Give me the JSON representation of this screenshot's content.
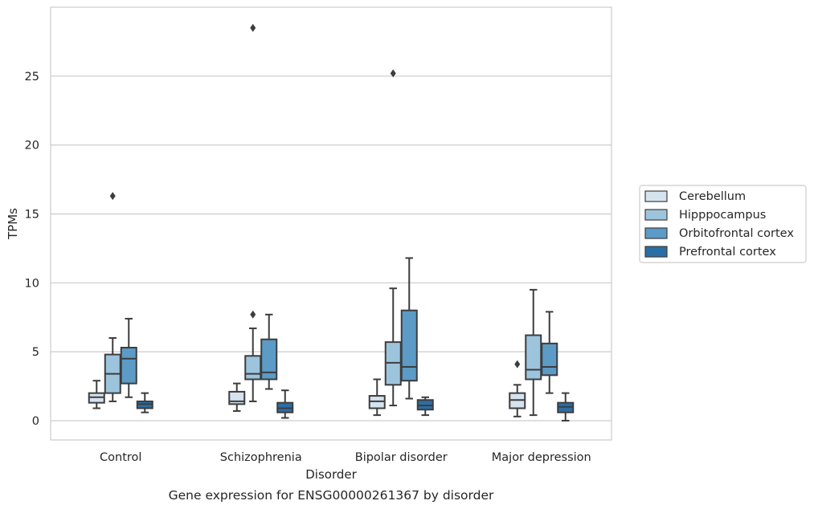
{
  "caption": "Gene expression for ENSG00000261367 by disorder",
  "chart_data": {
    "type": "box",
    "title": "",
    "xlabel": "Disorder",
    "ylabel": "TPMs",
    "ylim": [
      -1.4,
      30
    ],
    "yticks": [
      0,
      5,
      10,
      15,
      20,
      25
    ],
    "grid": "horizontal",
    "legend_position": "right",
    "categories": [
      "Control",
      "Schizophrenia",
      "Bipolar disorder",
      "Major depression"
    ],
    "series": [
      {
        "name": "Cerebellum",
        "color": "#d5e3ef",
        "boxes": [
          {
            "whislo": 0.9,
            "q1": 1.3,
            "med": 1.7,
            "q3": 2.0,
            "whishi": 2.9,
            "fliers": []
          },
          {
            "whislo": 0.7,
            "q1": 1.2,
            "med": 1.4,
            "q3": 2.1,
            "whishi": 2.7,
            "fliers": []
          },
          {
            "whislo": 0.4,
            "q1": 0.9,
            "med": 1.4,
            "q3": 1.8,
            "whishi": 3.0,
            "fliers": []
          },
          {
            "whislo": 0.3,
            "q1": 0.9,
            "med": 1.5,
            "q3": 2.0,
            "whishi": 2.6,
            "fliers": [
              4.1
            ]
          }
        ]
      },
      {
        "name": "Hipppocampus",
        "color": "#9dc4dd",
        "boxes": [
          {
            "whislo": 1.4,
            "q1": 2.0,
            "med": 3.4,
            "q3": 4.8,
            "whishi": 6.0,
            "fliers": [
              16.3
            ]
          },
          {
            "whislo": 1.4,
            "q1": 3.0,
            "med": 3.4,
            "q3": 4.7,
            "whishi": 6.7,
            "fliers": [
              7.7,
              28.5
            ]
          },
          {
            "whislo": 1.1,
            "q1": 2.6,
            "med": 4.2,
            "q3": 5.7,
            "whishi": 9.6,
            "fliers": [
              25.2
            ]
          },
          {
            "whislo": 0.4,
            "q1": 3.0,
            "med": 3.7,
            "q3": 6.2,
            "whishi": 9.5,
            "fliers": []
          }
        ]
      },
      {
        "name": "Orbitofrontal cortex",
        "color": "#5b9bc6",
        "boxes": [
          {
            "whislo": 1.7,
            "q1": 2.7,
            "med": 4.5,
            "q3": 5.3,
            "whishi": 7.4,
            "fliers": []
          },
          {
            "whislo": 2.3,
            "q1": 3.0,
            "med": 3.5,
            "q3": 5.9,
            "whishi": 7.7,
            "fliers": []
          },
          {
            "whislo": 1.6,
            "q1": 2.9,
            "med": 3.9,
            "q3": 8.0,
            "whishi": 11.8,
            "fliers": []
          },
          {
            "whislo": 2.0,
            "q1": 3.3,
            "med": 3.9,
            "q3": 5.6,
            "whishi": 7.9,
            "fliers": []
          }
        ]
      },
      {
        "name": "Prefrontal cortex",
        "color": "#2b6ea6",
        "boxes": [
          {
            "whislo": 0.6,
            "q1": 0.9,
            "med": 1.2,
            "q3": 1.4,
            "whishi": 2.0,
            "fliers": []
          },
          {
            "whislo": 0.2,
            "q1": 0.6,
            "med": 0.9,
            "q3": 1.3,
            "whishi": 2.2,
            "fliers": []
          },
          {
            "whislo": 0.4,
            "q1": 0.8,
            "med": 1.1,
            "q3": 1.5,
            "whishi": 1.7,
            "fliers": []
          },
          {
            "whislo": 0.0,
            "q1": 0.6,
            "med": 1.0,
            "q3": 1.3,
            "whishi": 2.0,
            "fliers": []
          }
        ]
      }
    ]
  }
}
